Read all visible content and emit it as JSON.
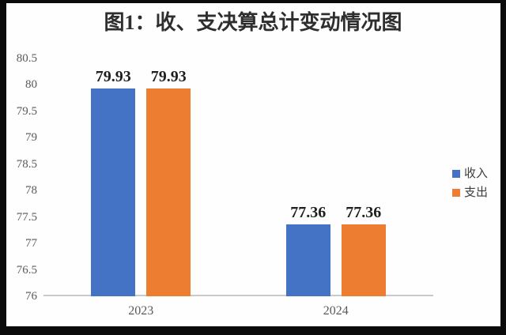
{
  "chart_data": {
    "type": "bar",
    "title": "图1：收、支决算总计变动情况图",
    "categories": [
      "2023",
      "2024"
    ],
    "series": [
      {
        "name": "收入",
        "color": "#4472C4",
        "values": [
          79.93,
          77.36
        ]
      },
      {
        "name": "支出",
        "color": "#ED7D31",
        "values": [
          79.93,
          77.36
        ]
      }
    ],
    "ylim": [
      76,
      80.5
    ],
    "ytick_labels": [
      "76",
      "76.5",
      "77",
      "77.5",
      "78",
      "78.5",
      "79",
      "79.5",
      "80",
      "80.5"
    ],
    "grid": false,
    "legend_position": "right",
    "data_labels": true,
    "data_label_texts": [
      [
        "79.93",
        "79.93"
      ],
      [
        "77.36",
        "77.36"
      ]
    ],
    "colors": {
      "axis_line": "#c9c9c9",
      "tick_label": "#595959",
      "value_label": "#1f1f1f",
      "title": "#2e2e2e",
      "frame": "#0b0b0b",
      "background": "#fefefe"
    }
  }
}
